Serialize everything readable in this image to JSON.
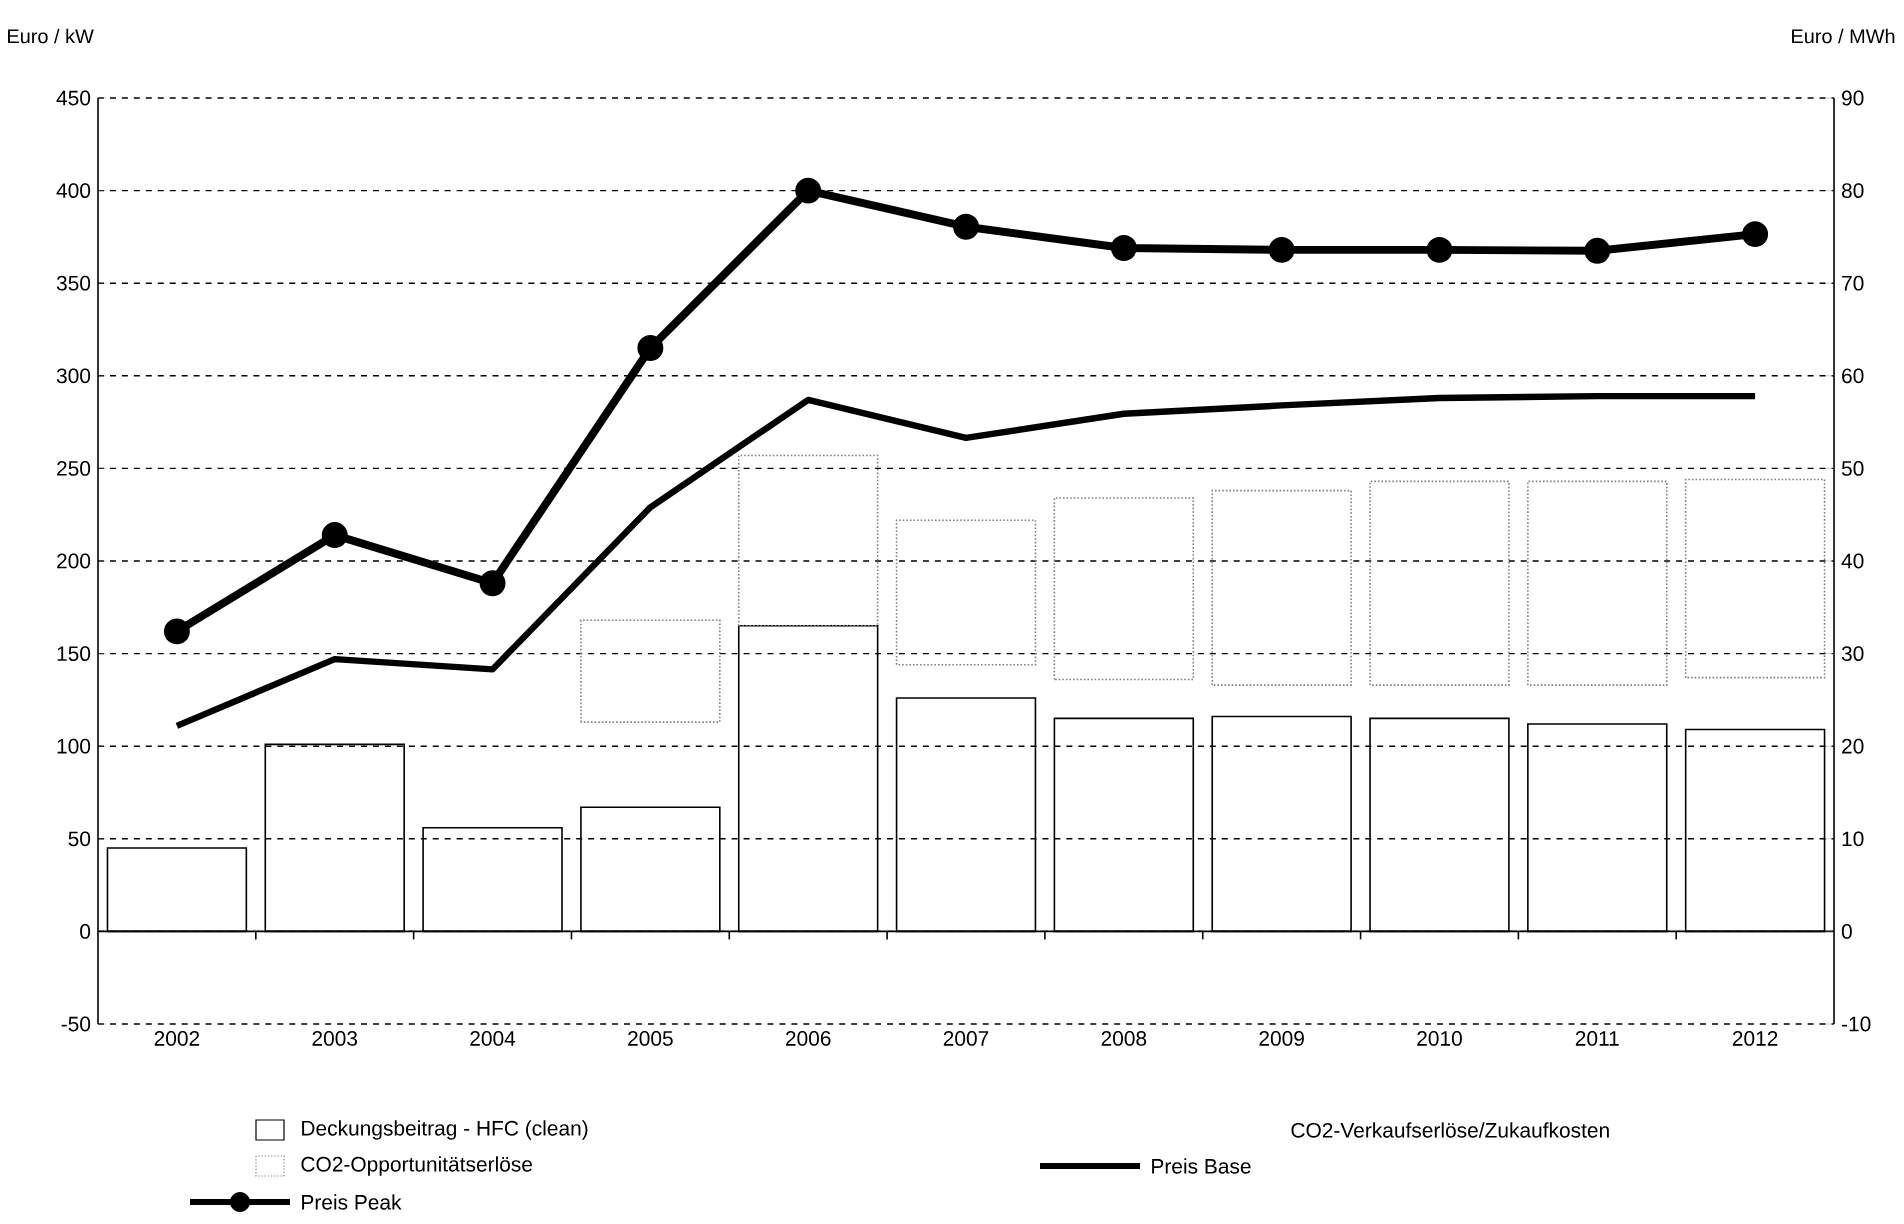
{
  "chart_data": {
    "type": "bar",
    "ylabel": "Euro / kW",
    "y2label": "Euro / MWh",
    "categories": [
      "2002",
      "2003",
      "2004",
      "2005",
      "2006",
      "2007",
      "2008",
      "2009",
      "2010",
      "2011",
      "2012"
    ],
    "series": [
      {
        "name": "Deckungsbeitrag - HFC (clean)",
        "color": "#000000",
        "values": [
          45,
          101,
          56,
          67,
          165,
          126,
          115,
          116,
          115,
          112,
          109
        ]
      },
      {
        "name": "CO2-Verkaufserlöse/Zukaufkosten",
        "values": [
          null,
          null,
          null,
          null,
          null,
          null,
          null,
          null,
          null,
          null,
          null
        ]
      },
      {
        "name": "CO2-Opportunitätserlöse",
        "color": "#808080",
        "line_style": "dotted",
        "base": [
          null,
          null,
          null,
          113,
          165,
          144,
          136,
          133,
          133,
          133,
          137
        ],
        "values": [
          null,
          null,
          null,
          55,
          92,
          78,
          98,
          105,
          110,
          110,
          107
        ]
      },
      {
        "name": "Preis Base",
        "type": "line",
        "axis": "y2",
        "color": "#000000",
        "values": [
          22.2,
          29.4,
          28.3,
          45.8,
          57.4,
          53.3,
          55.9,
          56.8,
          57.6,
          57.8,
          57.8
        ]
      },
      {
        "name": "Preis Peak",
        "type": "line",
        "axis": "y2",
        "marker": "circle",
        "color": "#000000",
        "values": [
          32.4,
          42.8,
          37.6,
          63,
          80,
          76.1,
          73.8,
          73.6,
          73.6,
          73.5,
          75.3
        ]
      }
    ],
    "ylim": [
      -50,
      450
    ],
    "yticks": [
      -50,
      0,
      50,
      100,
      150,
      200,
      250,
      300,
      350,
      400,
      450
    ],
    "y2lim": [
      -10,
      90
    ],
    "y2ticks": [
      -10,
      0,
      10,
      20,
      30,
      40,
      50,
      60,
      70,
      80,
      90
    ],
    "grid": "y",
    "legend": "bottom",
    "line_style": "solid"
  }
}
